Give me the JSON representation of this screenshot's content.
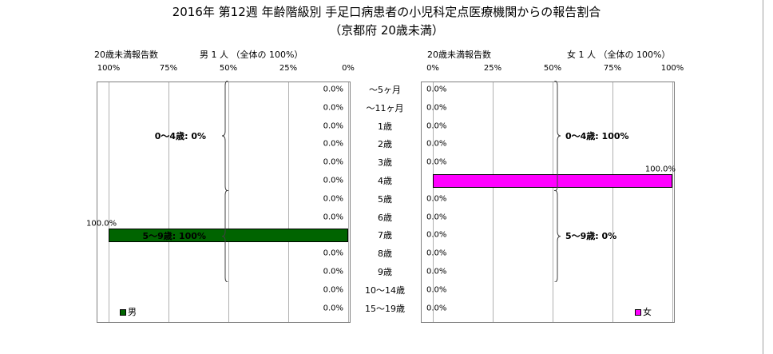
{
  "title_line1": "2016年 第12週 年齢階級別 手足口病患者の小児科定点医療機関からの報告割合",
  "title_line2": "（京都府 20歳未満）",
  "male": {
    "subheader_left": "20歳未満報告数",
    "subheader_right": "男  1 人 （全体の  100%）",
    "ticks": [
      "100%",
      "75%",
      "50%",
      "25%",
      "0%"
    ],
    "legend": "男",
    "color": "#006400",
    "groups": [
      {
        "label": "0～4歳: 0%",
        "from": 0,
        "to": 5
      },
      {
        "label": "5～9歳: 100%",
        "from": 6,
        "to": 10
      }
    ]
  },
  "female": {
    "subheader_left": "20歳未満報告数",
    "subheader_right": "女  1 人 （全体の  100%）",
    "ticks": [
      "0%",
      "25%",
      "50%",
      "75%",
      "100%"
    ],
    "legend": "女",
    "color": "#ff00ff",
    "groups": [
      {
        "label": "0～4歳: 100%",
        "from": 0,
        "to": 5
      },
      {
        "label": "5～9歳: 0%",
        "from": 6,
        "to": 10
      }
    ]
  },
  "chart_data": {
    "type": "bar",
    "title": "2016年 第12週 年齢階級別 手足口病患者の小児科定点医療機関からの報告割合（京都府 20歳未満）",
    "categories": [
      "～5ヶ月",
      "～11ヶ月",
      "1歳",
      "2歳",
      "3歳",
      "4歳",
      "5歳",
      "6歳",
      "7歳",
      "8歳",
      "9歳",
      "10～14歳",
      "15～19歳"
    ],
    "series": [
      {
        "name": "男",
        "values": [
          0,
          0,
          0,
          0,
          0,
          null,
          0,
          0,
          100,
          0,
          0,
          0,
          0
        ],
        "labels": [
          "0.0%",
          "0.0%",
          "0.0%",
          "0.0%",
          "0.0%",
          "0.0%",
          "0.0%",
          "0.0%",
          "100.0%",
          "0.0%",
          "0.0%",
          "0.0%",
          "0.0%"
        ]
      },
      {
        "name": "女",
        "values": [
          0,
          0,
          0,
          0,
          0,
          100,
          0,
          0,
          0,
          0,
          0,
          0,
          0
        ],
        "labels": [
          "0.0%",
          "0.0%",
          "0.0%",
          "0.0%",
          "0.0%",
          "100.0%",
          "0.0%",
          "0.0%",
          "0.0%",
          "0.0%",
          "0.0%",
          "0.0%",
          "0.0%"
        ]
      }
    ],
    "xlim": [
      0,
      100
    ],
    "grid": true
  }
}
